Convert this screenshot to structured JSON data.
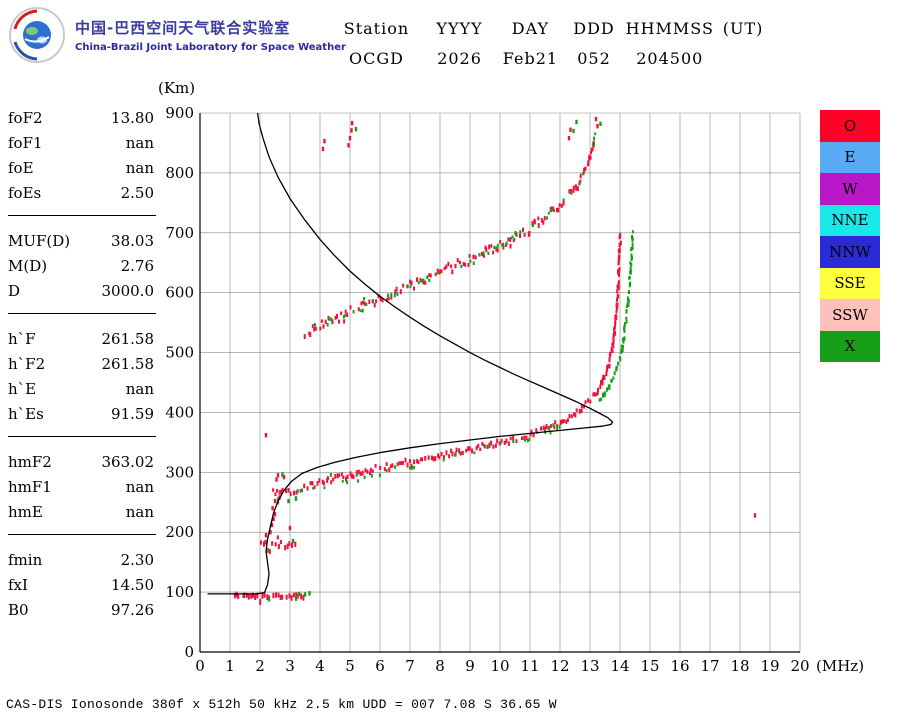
{
  "logo": {
    "title_zh": "中国-巴西空间天气联合实验室",
    "title_en": "China-Brazil Joint Laboratory for Space Weather"
  },
  "header": {
    "row1": [
      "Station",
      "YYYY",
      "DAY",
      "DDD",
      "HHMMSS",
      "(UT)"
    ],
    "row2": [
      "OCGD",
      "2026",
      "Feb21",
      "052",
      "204500",
      ""
    ]
  },
  "params": {
    "groups": [
      {
        "rows": [
          [
            "foF2",
            "13.80"
          ],
          [
            "foF1",
            "nan"
          ],
          [
            "foE",
            "nan"
          ],
          [
            "foEs",
            "2.50"
          ]
        ]
      },
      {
        "rows": [
          [
            "MUF(D)",
            "38.03"
          ],
          [
            "M(D)",
            "2.76"
          ],
          [
            "D",
            "3000.0"
          ]
        ]
      },
      {
        "rows": [
          [
            "h`F",
            "261.58"
          ],
          [
            "h`F2",
            "261.58"
          ],
          [
            "h`E",
            "nan"
          ],
          [
            "h`Es",
            "91.59"
          ]
        ]
      },
      {
        "rows": [
          [
            "hmF2",
            "363.02"
          ],
          [
            "hmF1",
            "nan"
          ],
          [
            "hmE",
            "nan"
          ]
        ]
      },
      {
        "rows": [
          [
            "fmin",
            "2.30"
          ],
          [
            "fxI",
            "14.50"
          ],
          [
            "B0",
            "97.26"
          ]
        ]
      }
    ]
  },
  "legend": [
    {
      "label": "O",
      "color": "#ff0026"
    },
    {
      "label": "E",
      "color": "#5aabf5"
    },
    {
      "label": "W",
      "color": "#b818c8"
    },
    {
      "label": "NNE",
      "color": "#19e8e8"
    },
    {
      "label": "NNW",
      "color": "#2b2bd5"
    },
    {
      "label": "SSE",
      "color": "#ffff3d"
    },
    {
      "label": "SSW",
      "color": "#ffc0bb"
    },
    {
      "label": "X",
      "color": "#17a017"
    }
  ],
  "footer": "CAS-DIS Ionosonde 380f x 512h 50 kHz 2.5 km UDD = 007 7.08 S 36.65 W",
  "chart_data": {
    "type": "scatter",
    "title": "Ionogram OCGD 2026 Feb21 052 204500 UT",
    "xlabel": "(MHz)",
    "ylabel": "(Km)",
    "xlim": [
      0,
      20
    ],
    "ylim": [
      0,
      900
    ],
    "xticks": [
      0,
      1,
      2,
      3,
      4,
      5,
      6,
      7,
      8,
      9,
      10,
      11,
      12,
      13,
      14,
      15,
      16,
      17,
      18,
      19,
      20
    ],
    "yticks": [
      0,
      100,
      200,
      300,
      400,
      500,
      600,
      700,
      800,
      900
    ],
    "grid": true,
    "legend_position": "right",
    "colors": {
      "O": "#f2103c",
      "X": "#12a01a",
      "profile": "#000000"
    },
    "key_values": {
      "foF2_MHz": 13.8,
      "fxI_MHz": 14.5,
      "foEs_MHz": 2.5,
      "fmin_MHz": 2.3,
      "hmF2_km": 363.02,
      "hpF_km": 261.58,
      "hEs_km": 91.59
    },
    "series": [
      {
        "name": "F-trace-O-first-hop",
        "kind": "trace",
        "color": "O",
        "thickness": 3.5,
        "jitter": 3,
        "gap": 0.08,
        "points": [
          [
            2.45,
            268
          ],
          [
            2.7,
            265
          ],
          [
            3.0,
            268
          ],
          [
            3.3,
            272
          ],
          [
            3.6,
            277
          ],
          [
            4.0,
            283
          ],
          [
            4.5,
            290
          ],
          [
            5.0,
            296
          ],
          [
            5.5,
            302
          ],
          [
            6.0,
            308
          ],
          [
            6.5,
            314
          ],
          [
            7.0,
            319
          ],
          [
            7.5,
            324
          ],
          [
            8.0,
            329
          ],
          [
            8.5,
            334
          ],
          [
            9.0,
            339
          ],
          [
            9.5,
            344
          ],
          [
            10.0,
            350
          ],
          [
            10.5,
            356
          ],
          [
            11.0,
            363
          ],
          [
            11.5,
            372
          ],
          [
            12.0,
            383
          ],
          [
            12.4,
            395
          ],
          [
            12.7,
            407
          ],
          [
            13.0,
            421
          ],
          [
            13.2,
            434
          ],
          [
            13.4,
            450
          ],
          [
            13.55,
            468
          ],
          [
            13.65,
            487
          ],
          [
            13.75,
            510
          ],
          [
            13.82,
            538
          ],
          [
            13.88,
            570
          ],
          [
            13.93,
            605
          ],
          [
            13.97,
            645
          ],
          [
            14.0,
            685
          ],
          [
            14.02,
            700
          ]
        ]
      },
      {
        "name": "F-trace-X-asymptote",
        "kind": "trace",
        "color": "X",
        "thickness": 3,
        "jitter": 2.5,
        "gap": 0.15,
        "points": [
          [
            13.3,
            418
          ],
          [
            13.6,
            442
          ],
          [
            13.85,
            468
          ],
          [
            14.05,
            500
          ],
          [
            14.15,
            535
          ],
          [
            14.25,
            575
          ],
          [
            14.33,
            620
          ],
          [
            14.38,
            662
          ],
          [
            14.42,
            705
          ]
        ]
      },
      {
        "name": "F-trace-X-sparse",
        "kind": "trace",
        "color": "X",
        "thickness": 2.5,
        "jitter": 4,
        "gap": 0.8,
        "points": [
          [
            2.5,
            258
          ],
          [
            3.0,
            257
          ],
          [
            3.5,
            270
          ],
          [
            4.5,
            283
          ],
          [
            5.5,
            295
          ],
          [
            6.5,
            307
          ],
          [
            7.5,
            317
          ],
          [
            8.5,
            327
          ],
          [
            9.5,
            338
          ],
          [
            10.5,
            350
          ],
          [
            11.5,
            368
          ],
          [
            12.4,
            392
          ]
        ]
      },
      {
        "name": "F-trace-O-second-hop",
        "kind": "trace",
        "color": "O",
        "thickness": 3.5,
        "jitter": 5,
        "gap": 0.18,
        "points": [
          [
            3.5,
            533
          ],
          [
            4.0,
            545
          ],
          [
            4.5,
            556
          ],
          [
            5.0,
            567
          ],
          [
            5.5,
            578
          ],
          [
            6.0,
            590
          ],
          [
            6.5,
            601
          ],
          [
            7.0,
            612
          ],
          [
            7.5,
            623
          ],
          [
            8.0,
            634
          ],
          [
            8.5,
            645
          ],
          [
            9.0,
            656
          ],
          [
            9.5,
            668
          ],
          [
            10.0,
            680
          ],
          [
            10.5,
            693
          ],
          [
            11.0,
            708
          ],
          [
            11.5,
            725
          ],
          [
            12.0,
            746
          ],
          [
            12.3,
            762
          ],
          [
            12.6,
            782
          ],
          [
            12.8,
            800
          ],
          [
            13.0,
            822
          ],
          [
            13.1,
            845
          ],
          [
            13.15,
            862
          ]
        ]
      },
      {
        "name": "F-trace-X-second-hop-fringe",
        "kind": "trace",
        "color": "X",
        "thickness": 2.5,
        "jitter": 3,
        "gap": 0.62,
        "points": [
          [
            3.6,
            538
          ],
          [
            4.3,
            552
          ],
          [
            5.0,
            565
          ],
          [
            6.0,
            588
          ],
          [
            7.0,
            610
          ],
          [
            8.0,
            632
          ],
          [
            9.0,
            655
          ],
          [
            10.0,
            678
          ],
          [
            10.8,
            703
          ],
          [
            11.4,
            722
          ],
          [
            12.0,
            744
          ],
          [
            12.5,
            775
          ],
          [
            12.8,
            800
          ],
          [
            13.0,
            824
          ],
          [
            13.12,
            850
          ],
          [
            13.2,
            868
          ]
        ]
      },
      {
        "name": "Es-trace-O",
        "kind": "trace",
        "color": "O",
        "thickness": 4.5,
        "jitter": 1.5,
        "gap": 0.06,
        "points": [
          [
            1.15,
            95
          ],
          [
            1.7,
            94
          ],
          [
            2.3,
            93
          ],
          [
            2.9,
            93
          ],
          [
            3.5,
            94
          ]
        ]
      },
      {
        "name": "Es-trace-X-bits",
        "kind": "dots",
        "color": "X",
        "points": [
          [
            3.3,
            97
          ],
          [
            3.5,
            96
          ],
          [
            3.65,
            98
          ],
          [
            2.3,
            88
          ],
          [
            3.2,
            89
          ]
        ]
      },
      {
        "name": "E-region-band-O",
        "kind": "trace",
        "color": "O",
        "thickness": 4,
        "jitter": 3,
        "gap": 0.12,
        "points": [
          [
            2.05,
            180
          ],
          [
            2.5,
            178
          ],
          [
            3.0,
            180
          ],
          [
            3.25,
            181
          ]
        ]
      },
      {
        "name": "E-region-scatter-O",
        "kind": "dots",
        "color": "O",
        "points": [
          [
            2.35,
            200
          ],
          [
            2.4,
            212
          ],
          [
            2.45,
            222
          ],
          [
            2.5,
            230
          ],
          [
            2.42,
            240
          ],
          [
            3.0,
            207
          ],
          [
            2.2,
            195
          ],
          [
            2.5,
            252
          ],
          [
            2.55,
            288
          ],
          [
            2.6,
            295
          ],
          [
            2.8,
            292
          ],
          [
            2.65,
            258
          ]
        ]
      },
      {
        "name": "F-start-X-bits",
        "kind": "dots",
        "color": "X",
        "points": [
          [
            2.6,
            250
          ],
          [
            2.95,
            252
          ],
          [
            3.2,
            256
          ],
          [
            2.75,
            296
          ],
          [
            3.1,
            185
          ],
          [
            2.25,
            170
          ]
        ]
      },
      {
        "name": "isolated-echoes-O",
        "kind": "dots",
        "color": "O",
        "points": [
          [
            2.2,
            362
          ],
          [
            18.5,
            228
          ],
          [
            4.1,
            840
          ],
          [
            4.15,
            853
          ],
          [
            4.95,
            846
          ],
          [
            5.0,
            858
          ],
          [
            5.05,
            871
          ],
          [
            5.07,
            883
          ],
          [
            12.3,
            858
          ],
          [
            12.35,
            872
          ],
          [
            13.2,
            890
          ],
          [
            13.25,
            878
          ]
        ]
      },
      {
        "name": "isolated-echoes-X",
        "kind": "dots",
        "color": "X",
        "points": [
          [
            5.2,
            873
          ],
          [
            12.45,
            870
          ],
          [
            12.55,
            885
          ],
          [
            13.35,
            882
          ]
        ]
      },
      {
        "name": "true-height-profile",
        "kind": "line",
        "color": "profile",
        "points": [
          [
            0.25,
            97
          ],
          [
            1.2,
            97
          ],
          [
            1.9,
            97
          ],
          [
            2.15,
            99
          ],
          [
            2.25,
            112
          ],
          [
            2.3,
            130
          ],
          [
            2.25,
            150
          ],
          [
            2.2,
            168
          ],
          [
            2.25,
            188
          ],
          [
            2.35,
            210
          ],
          [
            2.45,
            232
          ],
          [
            2.6,
            252
          ],
          [
            2.8,
            270
          ],
          [
            3.05,
            285
          ],
          [
            3.4,
            298
          ],
          [
            3.9,
            308
          ],
          [
            4.5,
            317
          ],
          [
            5.2,
            325
          ],
          [
            6.0,
            333
          ],
          [
            7.0,
            341
          ],
          [
            8.0,
            348
          ],
          [
            9.0,
            354
          ],
          [
            10.0,
            360
          ],
          [
            11.0,
            365
          ],
          [
            12.0,
            370
          ],
          [
            12.8,
            374
          ],
          [
            13.4,
            377
          ],
          [
            13.7,
            380
          ],
          [
            13.75,
            384
          ],
          [
            13.6,
            391
          ],
          [
            13.3,
            399
          ],
          [
            13.0,
            407
          ],
          [
            12.5,
            419
          ],
          [
            12.0,
            430
          ],
          [
            11.5,
            441
          ],
          [
            11.0,
            452
          ],
          [
            10.5,
            463
          ],
          [
            10.0,
            475
          ],
          [
            9.5,
            487
          ],
          [
            9.0,
            500
          ],
          [
            8.5,
            514
          ],
          [
            8.0,
            528
          ],
          [
            7.5,
            543
          ],
          [
            7.0,
            559
          ],
          [
            6.5,
            576
          ],
          [
            6.0,
            594
          ],
          [
            5.5,
            614
          ],
          [
            5.0,
            636
          ],
          [
            4.5,
            661
          ],
          [
            4.0,
            689
          ],
          [
            3.5,
            721
          ],
          [
            3.0,
            757
          ],
          [
            2.6,
            793
          ],
          [
            2.3,
            827
          ],
          [
            2.1,
            858
          ],
          [
            1.97,
            882
          ],
          [
            1.92,
            900
          ]
        ]
      }
    ]
  }
}
